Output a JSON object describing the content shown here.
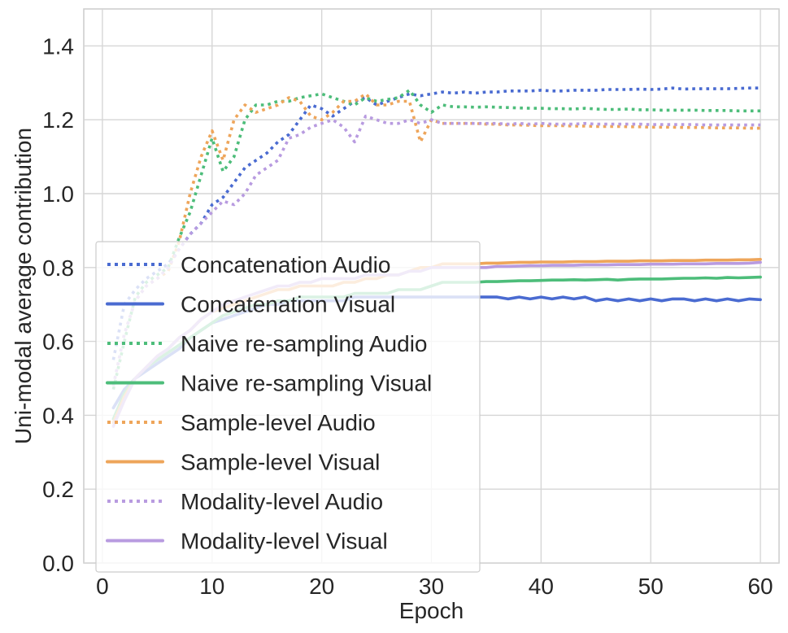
{
  "chart_data": {
    "type": "line",
    "title": "",
    "xlabel": "Epoch",
    "ylabel": "Uni-modal average contribution",
    "xlim": [
      -1.7,
      61.7
    ],
    "ylim": [
      0.0,
      1.5
    ],
    "xticks": [
      0,
      10,
      20,
      30,
      40,
      50,
      60
    ],
    "yticks": [
      0.0,
      0.2,
      0.4,
      0.6,
      0.8,
      1.0,
      1.2,
      1.4
    ],
    "grid": true,
    "legend_position": "lower-left",
    "series": [
      {
        "name": "Concatenation Audio",
        "color": "#4a6bd1",
        "style": "dotted",
        "x": [
          1,
          2,
          3,
          4,
          5,
          6,
          7,
          8,
          9,
          10,
          11,
          12,
          13,
          14,
          15,
          16,
          17,
          18,
          19,
          20,
          21,
          22,
          23,
          24,
          25,
          26,
          27,
          28,
          29,
          30,
          31,
          32,
          33,
          34,
          35,
          36,
          37,
          38,
          39,
          40,
          41,
          42,
          43,
          44,
          45,
          46,
          47,
          48,
          49,
          50,
          51,
          52,
          53,
          54,
          55,
          56,
          57,
          58,
          59,
          60
        ],
        "y": [
          0.55,
          0.7,
          0.74,
          0.77,
          0.79,
          0.81,
          0.85,
          0.89,
          0.92,
          0.97,
          0.99,
          1.03,
          1.07,
          1.09,
          1.11,
          1.14,
          1.16,
          1.2,
          1.24,
          1.23,
          1.21,
          1.23,
          1.25,
          1.26,
          1.24,
          1.25,
          1.26,
          1.27,
          1.265,
          1.27,
          1.275,
          1.272,
          1.275,
          1.272,
          1.275,
          1.275,
          1.278,
          1.278,
          1.278,
          1.28,
          1.278,
          1.278,
          1.28,
          1.28,
          1.28,
          1.282,
          1.282,
          1.282,
          1.283,
          1.282,
          1.283,
          1.286,
          1.283,
          1.284,
          1.284,
          1.284,
          1.284,
          1.285,
          1.286,
          1.286
        ]
      },
      {
        "name": "Concatenation Visual",
        "color": "#4a6bd1",
        "style": "solid",
        "x": [
          1,
          2,
          3,
          4,
          5,
          6,
          7,
          8,
          9,
          10,
          11,
          12,
          13,
          14,
          15,
          16,
          17,
          18,
          19,
          20,
          21,
          22,
          23,
          24,
          25,
          26,
          27,
          28,
          29,
          30,
          31,
          32,
          33,
          34,
          35,
          36,
          37,
          38,
          39,
          40,
          41,
          42,
          43,
          44,
          45,
          46,
          47,
          48,
          49,
          50,
          51,
          52,
          53,
          54,
          55,
          56,
          57,
          58,
          59,
          60
        ],
        "y": [
          0.42,
          0.47,
          0.5,
          0.52,
          0.54,
          0.56,
          0.58,
          0.61,
          0.63,
          0.65,
          0.66,
          0.67,
          0.68,
          0.69,
          0.7,
          0.7,
          0.71,
          0.71,
          0.71,
          0.71,
          0.71,
          0.71,
          0.72,
          0.72,
          0.72,
          0.72,
          0.72,
          0.72,
          0.72,
          0.72,
          0.72,
          0.72,
          0.72,
          0.72,
          0.72,
          0.72,
          0.715,
          0.72,
          0.715,
          0.72,
          0.715,
          0.72,
          0.715,
          0.72,
          0.71,
          0.715,
          0.71,
          0.715,
          0.71,
          0.715,
          0.71,
          0.715,
          0.715,
          0.71,
          0.715,
          0.71,
          0.715,
          0.71,
          0.715,
          0.713
        ]
      },
      {
        "name": "Naive re-sampling Audio",
        "color": "#4dbd7a",
        "style": "dotted",
        "x": [
          1,
          2,
          3,
          4,
          5,
          6,
          7,
          8,
          9,
          10,
          11,
          12,
          13,
          14,
          15,
          16,
          17,
          18,
          19,
          20,
          21,
          22,
          23,
          24,
          25,
          26,
          27,
          28,
          29,
          30,
          31,
          32,
          33,
          34,
          35,
          36,
          37,
          38,
          39,
          40,
          41,
          42,
          43,
          44,
          45,
          46,
          47,
          48,
          49,
          50,
          51,
          52,
          53,
          54,
          55,
          56,
          57,
          58,
          59,
          60
        ],
        "y": [
          0.47,
          0.6,
          0.72,
          0.76,
          0.78,
          0.8,
          0.88,
          0.95,
          1.05,
          1.15,
          1.06,
          1.1,
          1.2,
          1.24,
          1.24,
          1.25,
          1.25,
          1.26,
          1.265,
          1.27,
          1.26,
          1.25,
          1.24,
          1.26,
          1.25,
          1.255,
          1.26,
          1.28,
          1.24,
          1.22,
          1.24,
          1.235,
          1.235,
          1.234,
          1.235,
          1.234,
          1.233,
          1.232,
          1.231,
          1.231,
          1.23,
          1.23,
          1.229,
          1.231,
          1.229,
          1.228,
          1.228,
          1.229,
          1.227,
          1.227,
          1.226,
          1.226,
          1.226,
          1.226,
          1.225,
          1.225,
          1.225,
          1.224,
          1.224,
          1.224
        ]
      },
      {
        "name": "Naive re-sampling Visual",
        "color": "#4dbd7a",
        "style": "solid",
        "x": [
          1,
          2,
          3,
          4,
          5,
          6,
          7,
          8,
          9,
          10,
          11,
          12,
          13,
          14,
          15,
          16,
          17,
          18,
          19,
          20,
          21,
          22,
          23,
          24,
          25,
          26,
          27,
          28,
          29,
          30,
          31,
          32,
          33,
          34,
          35,
          36,
          37,
          38,
          39,
          40,
          41,
          42,
          43,
          44,
          45,
          46,
          47,
          48,
          49,
          50,
          51,
          52,
          53,
          54,
          55,
          56,
          57,
          58,
          59,
          60
        ],
        "y": [
          0.39,
          0.46,
          0.5,
          0.53,
          0.55,
          0.57,
          0.59,
          0.61,
          0.63,
          0.65,
          0.67,
          0.68,
          0.69,
          0.7,
          0.7,
          0.71,
          0.71,
          0.72,
          0.72,
          0.72,
          0.72,
          0.72,
          0.73,
          0.73,
          0.73,
          0.73,
          0.74,
          0.74,
          0.74,
          0.75,
          0.76,
          0.76,
          0.76,
          0.76,
          0.762,
          0.762,
          0.763,
          0.764,
          0.764,
          0.765,
          0.766,
          0.766,
          0.767,
          0.766,
          0.767,
          0.768,
          0.766,
          0.768,
          0.769,
          0.769,
          0.769,
          0.77,
          0.771,
          0.771,
          0.772,
          0.771,
          0.773,
          0.772,
          0.773,
          0.774
        ]
      },
      {
        "name": "Sample-level Audio",
        "color": "#eea55a",
        "style": "dotted",
        "x": [
          1,
          2,
          3,
          4,
          5,
          6,
          7,
          8,
          9,
          10,
          11,
          12,
          13,
          14,
          15,
          16,
          17,
          18,
          19,
          20,
          21,
          22,
          23,
          24,
          25,
          26,
          27,
          28,
          29,
          30,
          31,
          32,
          33,
          34,
          35,
          36,
          37,
          38,
          39,
          40,
          41,
          42,
          43,
          44,
          45,
          46,
          47,
          48,
          49,
          50,
          51,
          52,
          53,
          54,
          55,
          56,
          57,
          58,
          59,
          60
        ],
        "y": [
          0.48,
          0.62,
          0.71,
          0.75,
          0.77,
          0.79,
          0.87,
          1.0,
          1.1,
          1.17,
          1.09,
          1.2,
          1.24,
          1.22,
          1.23,
          1.24,
          1.26,
          1.25,
          1.21,
          1.2,
          1.22,
          1.25,
          1.25,
          1.27,
          1.24,
          1.24,
          1.25,
          1.25,
          1.14,
          1.2,
          1.19,
          1.19,
          1.19,
          1.19,
          1.188,
          1.188,
          1.186,
          1.186,
          1.185,
          1.184,
          1.184,
          1.184,
          1.183,
          1.183,
          1.182,
          1.182,
          1.182,
          1.181,
          1.181,
          1.18,
          1.18,
          1.18,
          1.179,
          1.179,
          1.179,
          1.178,
          1.178,
          1.178,
          1.177,
          1.177
        ]
      },
      {
        "name": "Sample-level Visual",
        "color": "#eea55a",
        "style": "solid",
        "x": [
          1,
          2,
          3,
          4,
          5,
          6,
          7,
          8,
          9,
          10,
          11,
          12,
          13,
          14,
          15,
          16,
          17,
          18,
          19,
          20,
          21,
          22,
          23,
          24,
          25,
          26,
          27,
          28,
          29,
          30,
          31,
          32,
          33,
          34,
          35,
          36,
          37,
          38,
          39,
          40,
          41,
          42,
          43,
          44,
          45,
          46,
          47,
          48,
          49,
          50,
          51,
          52,
          53,
          54,
          55,
          56,
          57,
          58,
          59,
          60
        ],
        "y": [
          0.38,
          0.45,
          0.5,
          0.53,
          0.56,
          0.58,
          0.61,
          0.63,
          0.66,
          0.68,
          0.69,
          0.7,
          0.71,
          0.72,
          0.73,
          0.74,
          0.74,
          0.75,
          0.75,
          0.75,
          0.75,
          0.76,
          0.76,
          0.77,
          0.77,
          0.78,
          0.78,
          0.79,
          0.8,
          0.8,
          0.81,
          0.81,
          0.81,
          0.81,
          0.812,
          0.812,
          0.813,
          0.814,
          0.814,
          0.815,
          0.815,
          0.815,
          0.816,
          0.816,
          0.816,
          0.817,
          0.817,
          0.817,
          0.818,
          0.818,
          0.818,
          0.819,
          0.819,
          0.819,
          0.82,
          0.82,
          0.82,
          0.821,
          0.821,
          0.822
        ]
      },
      {
        "name": "Modality-level Audio",
        "color": "#b89be0",
        "style": "dotted",
        "x": [
          1,
          2,
          3,
          4,
          5,
          6,
          7,
          8,
          9,
          10,
          11,
          12,
          13,
          14,
          15,
          16,
          17,
          18,
          19,
          20,
          21,
          22,
          23,
          24,
          25,
          26,
          27,
          28,
          29,
          30,
          31,
          32,
          33,
          34,
          35,
          36,
          37,
          38,
          39,
          40,
          41,
          42,
          43,
          44,
          45,
          46,
          47,
          48,
          49,
          50,
          51,
          52,
          53,
          54,
          55,
          56,
          57,
          58,
          59,
          60
        ],
        "y": [
          0.48,
          0.62,
          0.71,
          0.75,
          0.77,
          0.8,
          0.85,
          0.89,
          0.92,
          0.95,
          0.98,
          0.97,
          1.0,
          1.05,
          1.07,
          1.09,
          1.15,
          1.16,
          1.18,
          1.19,
          1.2,
          1.18,
          1.14,
          1.21,
          1.2,
          1.19,
          1.19,
          1.2,
          1.19,
          1.2,
          1.19,
          1.19,
          1.19,
          1.19,
          1.19,
          1.19,
          1.188,
          1.19,
          1.188,
          1.19,
          1.188,
          1.188,
          1.188,
          1.19,
          1.188,
          1.188,
          1.188,
          1.188,
          1.188,
          1.187,
          1.187,
          1.187,
          1.187,
          1.187,
          1.186,
          1.186,
          1.186,
          1.186,
          1.186,
          1.186
        ]
      },
      {
        "name": "Modality-level Visual",
        "color": "#b89be0",
        "style": "solid",
        "x": [
          1,
          2,
          3,
          4,
          5,
          6,
          7,
          8,
          9,
          10,
          11,
          12,
          13,
          14,
          15,
          16,
          17,
          18,
          19,
          20,
          21,
          22,
          23,
          24,
          25,
          26,
          27,
          28,
          29,
          30,
          31,
          32,
          33,
          34,
          35,
          36,
          37,
          38,
          39,
          40,
          41,
          42,
          43,
          44,
          45,
          46,
          47,
          48,
          49,
          50,
          51,
          52,
          53,
          54,
          55,
          56,
          57,
          58,
          59,
          60
        ],
        "y": [
          0.37,
          0.44,
          0.5,
          0.53,
          0.56,
          0.58,
          0.61,
          0.63,
          0.66,
          0.68,
          0.7,
          0.71,
          0.72,
          0.73,
          0.74,
          0.75,
          0.75,
          0.76,
          0.76,
          0.77,
          0.77,
          0.77,
          0.77,
          0.78,
          0.78,
          0.78,
          0.78,
          0.79,
          0.79,
          0.8,
          0.8,
          0.8,
          0.8,
          0.8,
          0.8,
          0.803,
          0.803,
          0.804,
          0.805,
          0.805,
          0.806,
          0.806,
          0.806,
          0.807,
          0.807,
          0.807,
          0.808,
          0.808,
          0.808,
          0.809,
          0.809,
          0.809,
          0.81,
          0.81,
          0.81,
          0.811,
          0.811,
          0.811,
          0.812,
          0.814
        ]
      }
    ]
  }
}
